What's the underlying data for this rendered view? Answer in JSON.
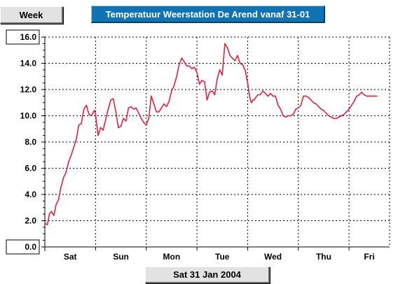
{
  "header": {
    "period_button_label": "Week",
    "title": "Temperatuur Weerstation De Arend vanaf 31-01"
  },
  "footer": {
    "date_button_label": "Sat 31 Jan 2004"
  },
  "colors": {
    "line": "#e8203a",
    "title_bg": "#1073b4",
    "grid": "#000000"
  },
  "chart_data": {
    "type": "line",
    "title": "Temperatuur Weerstation De Arend vanaf 31-01",
    "xlabel": "",
    "ylabel": "",
    "ylim": [
      0,
      16
    ],
    "yticks": [
      "0.0",
      "2.0",
      "4.0",
      "6.0",
      "8.0",
      "10.0",
      "12.0",
      "14.0",
      "16.0"
    ],
    "xlim": [
      0,
      6.8
    ],
    "day_labels": [
      "Sat",
      "Sun",
      "Mon",
      "Tue",
      "Wed",
      "Thu",
      "Fri"
    ],
    "grid": true,
    "x_unit": "days since start of Sat 31 Jan 2004",
    "series": [
      {
        "name": "",
        "x": [
          0.0,
          0.05,
          0.09,
          0.13,
          0.18,
          0.22,
          0.27,
          0.32,
          0.37,
          0.42,
          0.47,
          0.52,
          0.57,
          0.62,
          0.67,
          0.72,
          0.77,
          0.82,
          0.87,
          0.92,
          0.96,
          0.98,
          1.0,
          1.05,
          1.1,
          1.15,
          1.2,
          1.25,
          1.3,
          1.35,
          1.4,
          1.45,
          1.5,
          1.55,
          1.6,
          1.65,
          1.7,
          1.75,
          1.8,
          1.85,
          1.9,
          1.95,
          2.0,
          2.05,
          2.1,
          2.15,
          2.2,
          2.25,
          2.3,
          2.35,
          2.4,
          2.45,
          2.5,
          2.55,
          2.6,
          2.65,
          2.7,
          2.75,
          2.8,
          2.85,
          2.9,
          2.95,
          3.0,
          3.05,
          3.1,
          3.15,
          3.2,
          3.25,
          3.3,
          3.35,
          3.4,
          3.45,
          3.5,
          3.55,
          3.6,
          3.65,
          3.7,
          3.75,
          3.8,
          3.85,
          3.9,
          3.95,
          4.0,
          4.03,
          4.06,
          4.08,
          4.1,
          4.13,
          4.16,
          4.2,
          4.25,
          4.3,
          4.35,
          4.4,
          4.45,
          4.5,
          4.55,
          4.6,
          4.65,
          4.7,
          4.75,
          4.8,
          4.85,
          4.9,
          4.95,
          5.0,
          5.05,
          5.1,
          5.15,
          5.2,
          5.25,
          5.3,
          5.35,
          5.4,
          5.45,
          5.5,
          5.55,
          5.6,
          5.65,
          5.7,
          5.75,
          5.8,
          5.85,
          5.9,
          5.95,
          6.0,
          6.05,
          6.1,
          6.15,
          6.2,
          6.25,
          6.3,
          6.35,
          6.4,
          6.45,
          6.5,
          6.55
        ],
        "y": [
          1.8,
          1.7,
          2.5,
          2.7,
          2.4,
          3.2,
          3.6,
          4.6,
          5.3,
          5.7,
          6.5,
          7.0,
          7.6,
          8.2,
          9.3,
          9.4,
          10.5,
          10.8,
          10.1,
          10.0,
          10.3,
          10.4,
          10.1,
          8.5,
          9.1,
          8.9,
          9.7,
          10.5,
          11.2,
          11.3,
          10.3,
          9.1,
          9.2,
          9.8,
          9.6,
          10.6,
          10.7,
          10.5,
          10.6,
          10.2,
          9.8,
          9.5,
          9.3,
          9.8,
          11.5,
          10.9,
          10.3,
          10.3,
          10.6,
          10.9,
          10.7,
          11.1,
          11.9,
          12.3,
          13.0,
          13.9,
          14.4,
          14.1,
          13.8,
          13.8,
          13.6,
          13.7,
          13.3,
          12.4,
          12.7,
          12.6,
          11.2,
          11.8,
          11.9,
          11.6,
          12.8,
          13.5,
          13.1,
          15.5,
          15.2,
          14.6,
          14.4,
          14.2,
          14.6,
          14.0,
          13.9,
          13.5,
          12.5,
          11.7,
          11.1,
          11.0,
          11.2,
          11.2,
          11.4,
          11.6,
          11.6,
          11.9,
          11.7,
          11.5,
          11.7,
          11.5,
          11.5,
          10.8,
          10.5,
          10.0,
          9.9,
          10.0,
          10.0,
          10.1,
          10.5,
          10.6,
          10.8,
          11.5,
          11.5,
          11.4,
          11.2,
          11.0,
          10.9,
          10.7,
          10.5,
          10.4,
          10.2,
          10.0,
          9.9,
          9.8,
          9.8,
          9.9,
          10.0,
          10.1,
          10.3,
          10.5,
          10.8,
          11.1,
          11.5,
          11.6,
          11.8,
          11.6,
          11.5,
          11.5,
          11.5,
          11.5,
          11.5
        ]
      }
    ]
  }
}
